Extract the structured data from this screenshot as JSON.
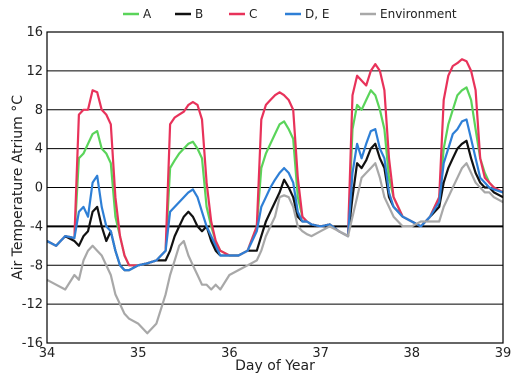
{
  "chart_data": {
    "type": "line",
    "xlabel": "Day of Year",
    "ylabel": "Air Temperature Atrium °C",
    "xlim": [
      34,
      39
    ],
    "ylim": [
      -16,
      16
    ],
    "x_ticks": [
      34,
      35,
      36,
      37,
      38,
      39
    ],
    "y_ticks": [
      -16,
      -12,
      -8,
      -4,
      0,
      4,
      8,
      12,
      16
    ],
    "grid": "horizontal",
    "legend": "top-center",
    "reference_line": {
      "y": -4,
      "color": "#000000"
    },
    "series": [
      {
        "name": "A",
        "color": "#5ad45a",
        "x": [
          34.0,
          34.1,
          34.2,
          34.3,
          34.35,
          34.4,
          34.45,
          34.5,
          34.55,
          34.6,
          34.65,
          34.7,
          34.75,
          34.8,
          34.85,
          34.9,
          35.0,
          35.1,
          35.2,
          35.3,
          35.35,
          35.4,
          35.45,
          35.5,
          35.55,
          35.6,
          35.65,
          35.7,
          35.75,
          35.8,
          35.85,
          35.9,
          36.0,
          36.1,
          36.2,
          36.3,
          36.35,
          36.4,
          36.45,
          36.5,
          36.55,
          36.6,
          36.65,
          36.7,
          36.75,
          36.8,
          36.85,
          36.9,
          37.0,
          37.1,
          37.2,
          37.3,
          37.35,
          37.4,
          37.45,
          37.5,
          37.55,
          37.6,
          37.65,
          37.7,
          37.75,
          37.8,
          37.85,
          37.9,
          38.0,
          38.1,
          38.2,
          38.3,
          38.35,
          38.4,
          38.45,
          38.5,
          38.55,
          38.6,
          38.65,
          38.7,
          38.75,
          38.8,
          38.85,
          38.9,
          39.0
        ],
        "y": [
          -5.5,
          -6.0,
          -5.0,
          -5.2,
          3.0,
          3.5,
          4.5,
          5.5,
          5.8,
          4.0,
          3.5,
          2.5,
          -3.0,
          -5.0,
          -7.0,
          -8.0,
          -8.0,
          -7.8,
          -7.5,
          -6.5,
          2.0,
          2.8,
          3.5,
          4.0,
          4.5,
          4.7,
          4.0,
          3.0,
          -2.0,
          -4.0,
          -5.5,
          -6.5,
          -7.0,
          -7.0,
          -6.5,
          -4.0,
          2.0,
          3.5,
          4.5,
          5.5,
          6.5,
          6.8,
          6.0,
          5.0,
          -1.0,
          -3.0,
          -3.5,
          -3.8,
          -4.0,
          -3.8,
          -4.5,
          -5.0,
          6.0,
          8.5,
          8.0,
          9.0,
          10.0,
          9.5,
          8.0,
          6.0,
          1.0,
          -1.0,
          -2.0,
          -3.0,
          -3.5,
          -4.0,
          -3.0,
          -1.0,
          4.0,
          6.5,
          8.0,
          9.5,
          10.0,
          10.3,
          9.0,
          6.0,
          3.0,
          1.5,
          0.5,
          0.0,
          -0.5
        ]
      },
      {
        "name": "B",
        "color": "#111111",
        "x": [
          34.0,
          34.1,
          34.2,
          34.3,
          34.35,
          34.4,
          34.45,
          34.5,
          34.55,
          34.6,
          34.65,
          34.7,
          34.75,
          34.8,
          34.85,
          34.9,
          35.0,
          35.1,
          35.2,
          35.3,
          35.35,
          35.4,
          35.45,
          35.5,
          35.55,
          35.6,
          35.65,
          35.7,
          35.75,
          35.8,
          35.85,
          35.9,
          36.0,
          36.1,
          36.2,
          36.3,
          36.35,
          36.4,
          36.45,
          36.5,
          36.55,
          36.6,
          36.65,
          36.7,
          36.75,
          36.8,
          36.85,
          36.9,
          37.0,
          37.1,
          37.2,
          37.3,
          37.35,
          37.4,
          37.45,
          37.5,
          37.55,
          37.6,
          37.65,
          37.7,
          37.75,
          37.8,
          37.85,
          37.9,
          38.0,
          38.1,
          38.2,
          38.3,
          38.35,
          38.4,
          38.45,
          38.5,
          38.55,
          38.6,
          38.65,
          38.7,
          38.75,
          38.8,
          38.85,
          38.9,
          39.0
        ],
        "y": [
          -5.5,
          -6.0,
          -5.0,
          -5.5,
          -6.0,
          -5.0,
          -4.5,
          -2.5,
          -2.0,
          -4.0,
          -5.5,
          -4.5,
          -6.5,
          -8.0,
          -8.5,
          -8.5,
          -8.0,
          -7.8,
          -7.5,
          -7.5,
          -6.5,
          -5.0,
          -4.0,
          -3.0,
          -2.5,
          -3.0,
          -4.0,
          -4.5,
          -4.0,
          -5.5,
          -6.5,
          -7.0,
          -7.0,
          -7.0,
          -6.5,
          -6.5,
          -5.0,
          -3.5,
          -2.5,
          -1.5,
          -0.5,
          0.8,
          0.0,
          -1.0,
          -3.0,
          -3.5,
          -3.5,
          -3.8,
          -4.0,
          -3.8,
          -4.5,
          -5.0,
          -1.0,
          2.5,
          2.0,
          2.8,
          4.0,
          4.5,
          3.0,
          2.0,
          -1.0,
          -2.0,
          -2.5,
          -3.0,
          -3.5,
          -4.0,
          -3.0,
          -2.0,
          0.5,
          2.0,
          3.0,
          4.0,
          4.5,
          4.8,
          3.0,
          1.5,
          0.5,
          0.0,
          0.0,
          -0.5,
          -1.0
        ]
      },
      {
        "name": "C",
        "color": "#e8325a",
        "x": [
          34.0,
          34.1,
          34.2,
          34.3,
          34.35,
          34.4,
          34.45,
          34.5,
          34.55,
          34.6,
          34.65,
          34.7,
          34.75,
          34.8,
          34.85,
          34.9,
          35.0,
          35.1,
          35.2,
          35.3,
          35.35,
          35.4,
          35.45,
          35.5,
          35.55,
          35.6,
          35.65,
          35.7,
          35.75,
          35.8,
          35.85,
          35.9,
          36.0,
          36.1,
          36.2,
          36.3,
          36.35,
          36.4,
          36.45,
          36.5,
          36.55,
          36.6,
          36.65,
          36.7,
          36.75,
          36.8,
          36.85,
          36.9,
          37.0,
          37.1,
          37.2,
          37.3,
          37.35,
          37.4,
          37.45,
          37.5,
          37.55,
          37.6,
          37.65,
          37.7,
          37.75,
          37.8,
          37.85,
          37.9,
          38.0,
          38.1,
          38.2,
          38.3,
          38.35,
          38.4,
          38.45,
          38.5,
          38.55,
          38.6,
          38.65,
          38.7,
          38.75,
          38.8,
          38.85,
          38.9,
          39.0
        ],
        "y": [
          -5.5,
          -6.0,
          -5.0,
          -5.2,
          7.5,
          8.0,
          8.0,
          10.0,
          9.8,
          8.0,
          7.5,
          6.5,
          -1.0,
          -5.0,
          -7.0,
          -8.0,
          -8.0,
          -7.8,
          -7.5,
          -6.5,
          6.5,
          7.2,
          7.5,
          7.8,
          8.5,
          8.8,
          8.5,
          7.0,
          0.5,
          -3.5,
          -5.5,
          -6.5,
          -7.0,
          -7.0,
          -6.5,
          -4.0,
          7.0,
          8.5,
          9.0,
          9.5,
          9.8,
          9.5,
          9.0,
          8.0,
          1.0,
          -3.0,
          -3.5,
          -3.8,
          -4.0,
          -3.8,
          -4.5,
          -5.0,
          9.5,
          11.5,
          11.0,
          10.5,
          12.0,
          12.7,
          12.0,
          10.0,
          3.0,
          -1.0,
          -2.0,
          -3.0,
          -3.5,
          -4.0,
          -3.0,
          -1.0,
          9.0,
          11.5,
          12.5,
          12.8,
          13.2,
          13.0,
          12.0,
          10.0,
          3.0,
          1.0,
          0.5,
          0.0,
          -0.5
        ]
      },
      {
        "name": "D, E",
        "color": "#2e7fd6",
        "x": [
          34.0,
          34.1,
          34.2,
          34.3,
          34.35,
          34.4,
          34.45,
          34.5,
          34.55,
          34.6,
          34.65,
          34.7,
          34.75,
          34.8,
          34.85,
          34.9,
          35.0,
          35.1,
          35.2,
          35.3,
          35.35,
          35.4,
          35.45,
          35.5,
          35.55,
          35.6,
          35.65,
          35.7,
          35.75,
          35.8,
          35.85,
          35.9,
          36.0,
          36.1,
          36.2,
          36.3,
          36.35,
          36.4,
          36.45,
          36.5,
          36.55,
          36.6,
          36.65,
          36.7,
          36.75,
          36.8,
          36.85,
          36.9,
          37.0,
          37.1,
          37.2,
          37.3,
          37.35,
          37.4,
          37.45,
          37.5,
          37.55,
          37.6,
          37.65,
          37.7,
          37.75,
          37.8,
          37.85,
          37.9,
          38.0,
          38.1,
          38.2,
          38.3,
          38.35,
          38.4,
          38.45,
          38.5,
          38.55,
          38.6,
          38.65,
          38.7,
          38.75,
          38.8,
          38.85,
          38.9,
          39.0
        ],
        "y": [
          -5.5,
          -6.0,
          -5.0,
          -5.2,
          -2.5,
          -2.0,
          -3.0,
          0.5,
          1.2,
          -2.0,
          -4.0,
          -4.5,
          -6.5,
          -8.0,
          -8.5,
          -8.5,
          -8.0,
          -7.8,
          -7.5,
          -6.5,
          -2.5,
          -2.0,
          -1.5,
          -1.0,
          -0.5,
          -0.2,
          -1.0,
          -2.5,
          -4.0,
          -5.0,
          -6.0,
          -7.0,
          -7.0,
          -7.0,
          -6.5,
          -4.5,
          -2.0,
          -1.0,
          0.0,
          0.8,
          1.5,
          2.0,
          1.5,
          0.5,
          -2.5,
          -3.5,
          -3.5,
          -3.8,
          -4.0,
          -3.8,
          -4.5,
          -5.0,
          1.5,
          4.5,
          3.0,
          4.5,
          5.8,
          6.0,
          4.0,
          3.0,
          -0.5,
          -2.0,
          -2.5,
          -3.0,
          -3.5,
          -4.0,
          -3.0,
          -1.5,
          2.5,
          4.0,
          5.5,
          6.0,
          6.8,
          7.0,
          5.0,
          3.0,
          1.0,
          0.5,
          0.0,
          -0.2,
          -0.5
        ]
      },
      {
        "name": "Environment",
        "color": "#a8a8a8",
        "x": [
          34.0,
          34.1,
          34.2,
          34.3,
          34.35,
          34.4,
          34.45,
          34.5,
          34.55,
          34.6,
          34.65,
          34.7,
          34.75,
          34.8,
          34.85,
          34.9,
          35.0,
          35.1,
          35.2,
          35.3,
          35.35,
          35.4,
          35.45,
          35.5,
          35.55,
          35.6,
          35.65,
          35.7,
          35.75,
          35.8,
          35.85,
          35.9,
          36.0,
          36.1,
          36.2,
          36.3,
          36.35,
          36.4,
          36.45,
          36.5,
          36.55,
          36.6,
          36.65,
          36.7,
          36.75,
          36.8,
          36.85,
          36.9,
          37.0,
          37.1,
          37.2,
          37.3,
          37.35,
          37.4,
          37.45,
          37.5,
          37.55,
          37.6,
          37.65,
          37.7,
          37.75,
          37.8,
          37.85,
          37.9,
          38.0,
          38.1,
          38.2,
          38.3,
          38.35,
          38.4,
          38.45,
          38.5,
          38.55,
          38.6,
          38.65,
          38.7,
          38.75,
          38.8,
          38.85,
          38.9,
          39.0
        ],
        "y": [
          -9.5,
          -10.0,
          -10.5,
          -9.0,
          -9.5,
          -7.5,
          -6.5,
          -6.0,
          -6.5,
          -7.0,
          -8.0,
          -9.0,
          -11.0,
          -12.0,
          -13.0,
          -13.5,
          -14.0,
          -15.0,
          -14.0,
          -11.0,
          -9.0,
          -7.5,
          -6.0,
          -5.5,
          -7.0,
          -8.0,
          -9.0,
          -10.0,
          -10.0,
          -10.5,
          -10.0,
          -10.5,
          -9.0,
          -8.5,
          -8.0,
          -7.5,
          -6.5,
          -5.0,
          -4.0,
          -3.0,
          -1.0,
          -0.8,
          -1.0,
          -2.0,
          -4.0,
          -4.5,
          -4.8,
          -5.0,
          -4.5,
          -4.0,
          -4.5,
          -5.0,
          -3.0,
          -1.0,
          1.0,
          1.5,
          2.0,
          2.5,
          1.0,
          -1.0,
          -2.0,
          -3.0,
          -3.5,
          -4.0,
          -4.0,
          -3.5,
          -3.5,
          -3.5,
          -2.0,
          -1.0,
          0.0,
          1.0,
          2.0,
          2.5,
          1.5,
          0.5,
          0.0,
          -0.5,
          -0.5,
          -1.0,
          -1.5
        ]
      }
    ]
  }
}
